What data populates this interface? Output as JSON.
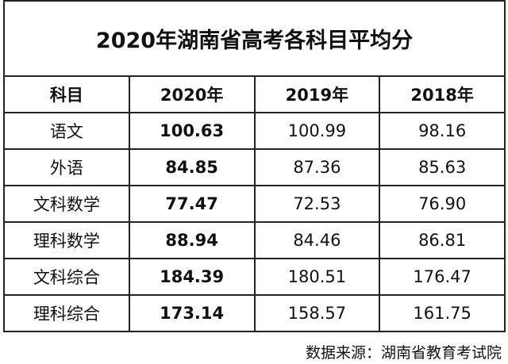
{
  "title": "2020年湖南省高考各科目平均分",
  "table": {
    "header": [
      "科目",
      "2020年",
      "2019年",
      "2018年"
    ],
    "rows": [
      [
        "语文",
        "100.63",
        "100.99",
        "98.16"
      ],
      [
        "外语",
        "84.85",
        "87.36",
        "85.63"
      ],
      [
        "文科数学",
        "77.47",
        "72.53",
        "76.90"
      ],
      [
        "理科数学",
        "88.94",
        "84.46",
        "86.81"
      ],
      [
        "文科综合",
        "184.39",
        "180.51",
        "176.47"
      ],
      [
        "理科综合",
        "173.14",
        "158.57",
        "161.75"
      ]
    ]
  },
  "source": "数据来源：湖南省教育考试院"
}
